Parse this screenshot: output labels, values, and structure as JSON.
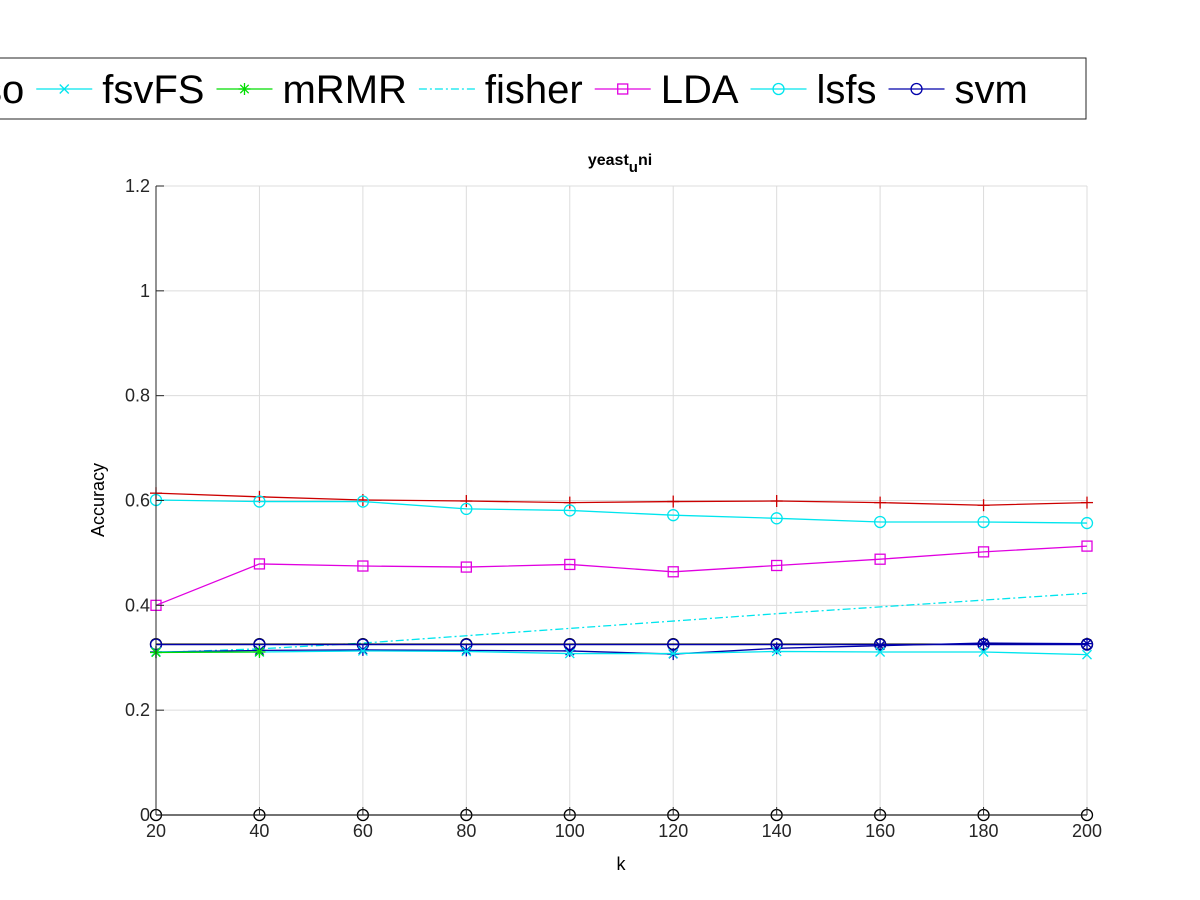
{
  "chart_data": {
    "type": "line",
    "title": "yeast",
    "title_subscript": "u",
    "title_suffix": "ni",
    "xlabel": "k",
    "ylabel": "Accuracy",
    "xlim": [
      20,
      200
    ],
    "ylim": [
      0,
      1.2
    ],
    "grid": true,
    "legend_placement": "top",
    "x": [
      20,
      40,
      60,
      80,
      100,
      120,
      140,
      160,
      180,
      200
    ],
    "xticks": [
      "20",
      "40",
      "60",
      "80",
      "100",
      "120",
      "140",
      "160",
      "180",
      "200"
    ],
    "yticks": [
      {
        "value": 0,
        "label": "0"
      },
      {
        "value": 0.2,
        "label": "0.2"
      },
      {
        "value": 0.4,
        "label": "0.4"
      },
      {
        "value": 0.6,
        "label": "0.6"
      },
      {
        "value": 0.8,
        "label": "0.8"
      },
      {
        "value": 1,
        "label": "1"
      },
      {
        "value": 1.2,
        "label": "1.2"
      }
    ],
    "legend": [
      {
        "name": "so",
        "color": "#000000",
        "marker": "none",
        "dash": "solid",
        "partial": true
      },
      {
        "name": "fsvFS",
        "color": "#00e5ee",
        "marker": "x",
        "dash": "solid"
      },
      {
        "name": "mRMR",
        "color": "#00dd00",
        "marker": "asterisk",
        "dash": "solid"
      },
      {
        "name": "fisher",
        "color": "#00e5ee",
        "marker": "none",
        "dash": "dashdot"
      },
      {
        "name": "LDA",
        "color": "#e000e0",
        "marker": "square",
        "dash": "solid"
      },
      {
        "name": "lsfs",
        "color": "#00e5ee",
        "marker": "circle",
        "dash": "solid"
      },
      {
        "name": "svm",
        "color": "#0000aa",
        "marker": "circle",
        "dash": "solid"
      }
    ],
    "series": [
      {
        "color": "#000000",
        "marker": "circle",
        "dash": "solid",
        "values": [
          0,
          0,
          0,
          0,
          0,
          0,
          0,
          0,
          0,
          0
        ]
      },
      {
        "color": "#cc0000",
        "marker": "plus",
        "dash": "solid",
        "values": [
          0.614,
          0.607,
          0.601,
          0.599,
          0.596,
          0.598,
          0.599,
          0.596,
          0.591,
          0.596
        ]
      },
      {
        "color": "#00e5ee",
        "marker": "circle",
        "dash": "solid",
        "values": [
          0.601,
          0.598,
          0.598,
          0.584,
          0.581,
          0.572,
          0.566,
          0.559,
          0.559,
          0.557
        ]
      },
      {
        "color": "#e000e0",
        "marker": "square",
        "dash": "solid",
        "values": [
          0.4,
          0.479,
          0.475,
          0.473,
          0.478,
          0.464,
          0.476,
          0.488,
          0.502,
          0.513
        ]
      },
      {
        "color": "#00e5ee",
        "marker": "none",
        "dash": "dashdot",
        "values": [
          0.31,
          0.317,
          0.328,
          0.342,
          0.356,
          0.37,
          0.384,
          0.397,
          0.41,
          0.423
        ]
      },
      {
        "color": "#000000",
        "marker": "circle",
        "dash": "solid",
        "values": [
          0.326,
          0.326,
          0.326,
          0.326,
          0.326,
          0.326,
          0.326,
          0.326,
          0.326,
          0.326
        ]
      },
      {
        "color": "#0000aa",
        "marker": "asterisk",
        "dash": "solid",
        "values": [
          0.311,
          0.314,
          0.315,
          0.314,
          0.313,
          0.307,
          0.318,
          0.323,
          0.328,
          0.327
        ]
      },
      {
        "color": "#0000aa",
        "marker": "circle",
        "dash": "solid",
        "values": [
          0.325,
          0.325,
          0.325,
          0.325,
          0.325,
          0.325,
          0.325,
          0.325,
          0.325,
          0.325
        ]
      },
      {
        "color": "#00e5ee",
        "marker": "x",
        "dash": "solid",
        "values": [
          0.311,
          0.311,
          0.313,
          0.312,
          0.308,
          0.308,
          0.312,
          0.311,
          0.311,
          0.306
        ]
      },
      {
        "color": "#00dd00",
        "marker": "asterisk",
        "dash": "solid",
        "values": [
          0.31,
          0.311,
          null,
          null,
          null,
          null,
          null,
          null,
          null,
          null
        ]
      }
    ]
  }
}
